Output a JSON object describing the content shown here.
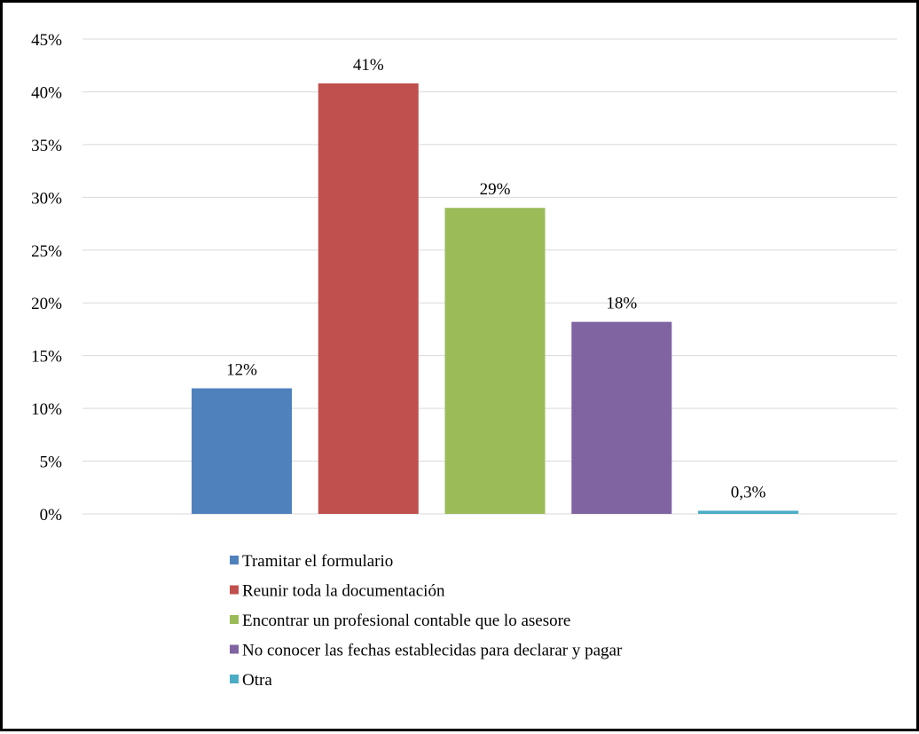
{
  "chart_data": {
    "type": "bar",
    "title": "",
    "xlabel": "",
    "ylabel": "",
    "ylim": [
      0,
      45
    ],
    "y_ticks": [
      "0%",
      "5%",
      "10%",
      "15%",
      "20%",
      "25%",
      "30%",
      "35%",
      "40%",
      "45%"
    ],
    "y_tick_values": [
      0,
      5,
      10,
      15,
      20,
      25,
      30,
      35,
      40,
      45
    ],
    "grid": true,
    "legend_position": "bottom",
    "categories": [
      "Tramitar el formulario",
      "Reunir toda la documentación",
      "Encontrar un profesional contable que lo asesore",
      "No conocer las fechas establecidas para declarar y pagar",
      "Otra"
    ],
    "values": [
      11.9,
      40.8,
      29.0,
      18.2,
      0.3
    ],
    "data_labels": [
      "12%",
      "41%",
      "29%",
      "18%",
      "0,3%"
    ],
    "colors": [
      "#4f81bd",
      "#c0504d",
      "#9bbb59",
      "#8064a2",
      "#4bacc6"
    ]
  }
}
